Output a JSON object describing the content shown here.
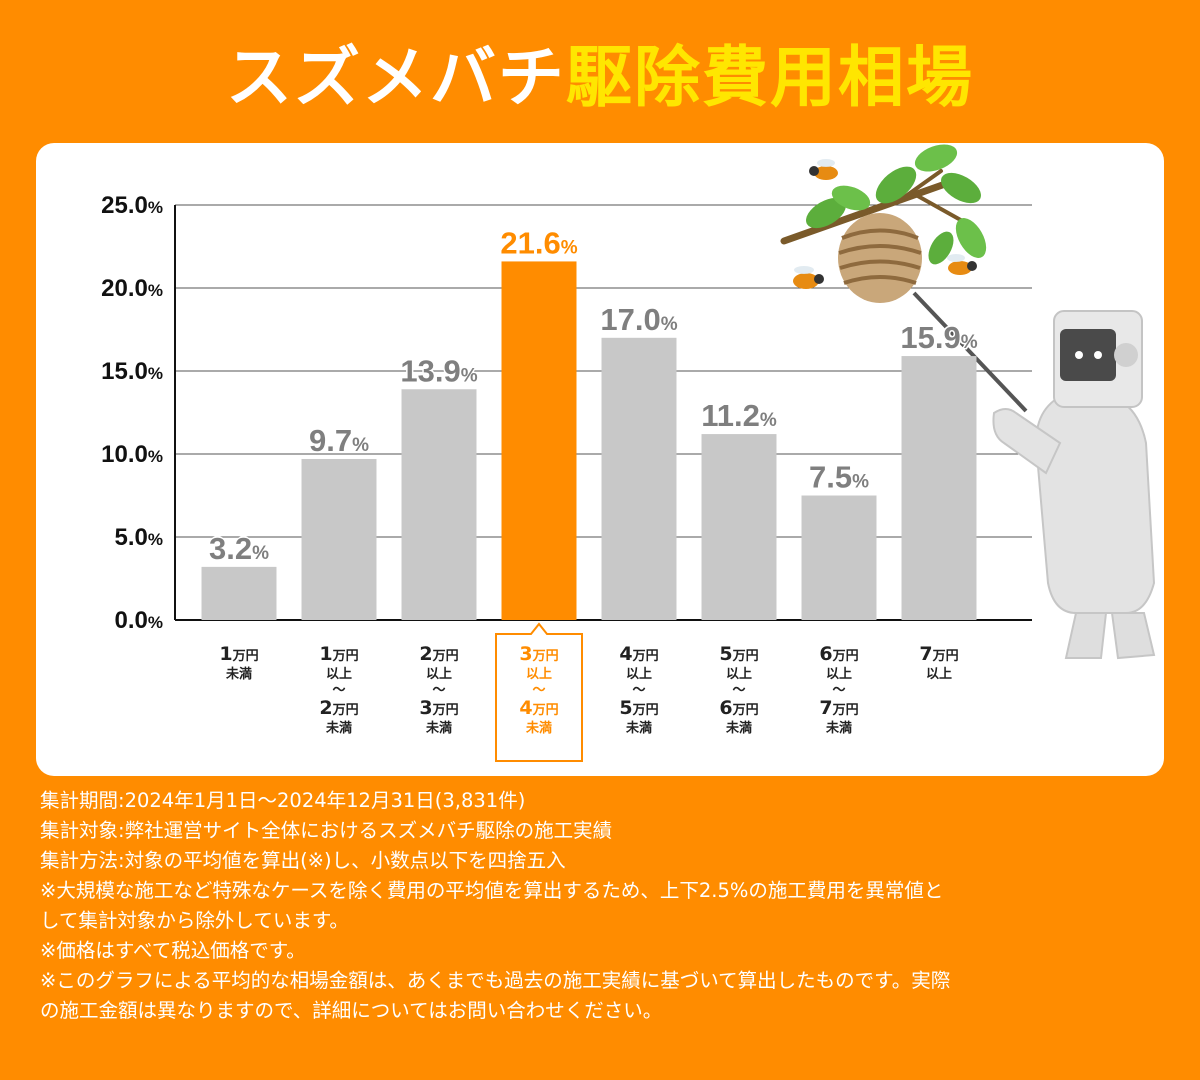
{
  "title": {
    "part1": "スズメバチ",
    "part2": "駆除費用相場"
  },
  "colors": {
    "background": "#ff8c00",
    "bar": "#c8c8c8",
    "highlight": "#ff8c00",
    "value_label": "#7f7f7f",
    "title_accent": "#ffe600"
  },
  "chart_data": {
    "type": "bar",
    "categories": [
      "1万円未満",
      "1万円以上〜2万円未満",
      "2万円以上〜3万円未満",
      "3万円以上〜4万円未満",
      "4万円以上〜5万円未満",
      "5万円以上〜6万円未満",
      "6万円以上〜7万円未満",
      "7万円以上"
    ],
    "values": [
      3.2,
      9.7,
      13.9,
      21.6,
      17.0,
      11.2,
      7.5,
      15.9
    ],
    "value_labels": [
      "3.2",
      "9.7",
      "13.9",
      "21.6",
      "17.0",
      "11.2",
      "7.5",
      "15.9"
    ],
    "value_suffix": "%",
    "highlight_index": 3,
    "ylim": [
      0,
      25
    ],
    "yticks": [
      {
        "value": 0,
        "num": "0.0",
        "suffix": "%"
      },
      {
        "value": 5,
        "num": "5.0",
        "suffix": "%"
      },
      {
        "value": 10,
        "num": "10.0",
        "suffix": "%"
      },
      {
        "value": 15,
        "num": "15.0",
        "suffix": "%"
      },
      {
        "value": 20,
        "num": "20.0",
        "suffix": "%"
      },
      {
        "value": 25,
        "num": "25.0",
        "suffix": "%"
      }
    ],
    "grid": true,
    "x_labels": [
      [
        [
          "1",
          "万円"
        ],
        [
          "未満"
        ]
      ],
      [
        [
          "1",
          "万円"
        ],
        [
          "以上"
        ],
        [
          "〜"
        ],
        [
          "2",
          "万円"
        ],
        [
          "未満"
        ]
      ],
      [
        [
          "2",
          "万円"
        ],
        [
          "以上"
        ],
        [
          "〜"
        ],
        [
          "3",
          "万円"
        ],
        [
          "未満"
        ]
      ],
      [
        [
          "3",
          "万円"
        ],
        [
          "以上"
        ],
        [
          "〜"
        ],
        [
          "4",
          "万円"
        ],
        [
          "未満"
        ]
      ],
      [
        [
          "4",
          "万円"
        ],
        [
          "以上"
        ],
        [
          "〜"
        ],
        [
          "5",
          "万円"
        ],
        [
          "未満"
        ]
      ],
      [
        [
          "5",
          "万円"
        ],
        [
          "以上"
        ],
        [
          "〜"
        ],
        [
          "6",
          "万円"
        ],
        [
          "未満"
        ]
      ],
      [
        [
          "6",
          "万円"
        ],
        [
          "以上"
        ],
        [
          "〜"
        ],
        [
          "7",
          "万円"
        ],
        [
          "未満"
        ]
      ],
      [
        [
          "7",
          "万円"
        ],
        [
          "以上"
        ]
      ]
    ]
  },
  "notes": [
    "集計期間:2024年1月1日〜2024年12月31日(3,831件)",
    "集計対象:弊社運営サイト全体におけるスズメバチ駆除の施工実績",
    "集計方法:対象の平均値を算出(※)し、小数点以下を四捨五入",
    "※大規模な施工など特殊なケースを除く費用の平均値を算出するため、上下2.5%の施工費用を異常値と",
    "して集計対象から除外しています。",
    "※価格はすべて税込価格です。",
    "※このグラフによる平均的な相場金額は、あくまでも過去の施工実績に基づいて算出したものです。実際",
    "の施工金額は異なりますので、詳細についてはお問い合わせください。"
  ]
}
